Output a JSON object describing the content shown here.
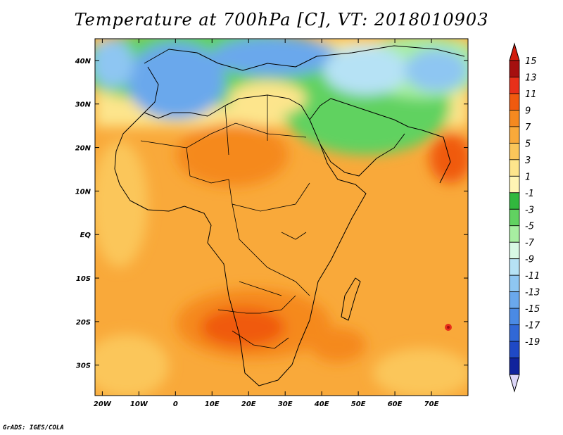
{
  "title": "Temperature at 700hPa [C], VT: 2018010903",
  "credit": "GrADS: IGES/COLA",
  "map": {
    "lon_range": [
      -22,
      80
    ],
    "lat_range": [
      -37,
      45
    ],
    "lon_ticks": [
      {
        "value": -20,
        "label": "20W"
      },
      {
        "value": -10,
        "label": "10W"
      },
      {
        "value": 0,
        "label": "0"
      },
      {
        "value": 10,
        "label": "10E"
      },
      {
        "value": 20,
        "label": "20E"
      },
      {
        "value": 30,
        "label": "30E"
      },
      {
        "value": 40,
        "label": "40E"
      },
      {
        "value": 50,
        "label": "50E"
      },
      {
        "value": 60,
        "label": "60E"
      },
      {
        "value": 70,
        "label": "70E"
      }
    ],
    "lat_ticks": [
      {
        "value": 40,
        "label": "40N"
      },
      {
        "value": 30,
        "label": "30N"
      },
      {
        "value": 20,
        "label": "20N"
      },
      {
        "value": 10,
        "label": "10N"
      },
      {
        "value": 0,
        "label": "EQ"
      },
      {
        "value": -10,
        "label": "10S"
      },
      {
        "value": -20,
        "label": "20S"
      },
      {
        "value": -30,
        "label": "30S"
      }
    ]
  },
  "colorbar": {
    "labels": [
      "15",
      "13",
      "11",
      "9",
      "7",
      "5",
      "3",
      "1",
      "-1",
      "-3",
      "-5",
      "-7",
      "-9",
      "-11",
      "-13",
      "-15",
      "-17",
      "-19"
    ],
    "colors": [
      "#a50f0f",
      "#e8301a",
      "#f05a0f",
      "#f5891f",
      "#f9a93a",
      "#fbc65a",
      "#fde58c",
      "#fff5b4",
      "#31b83e",
      "#61d261",
      "#a7eea1",
      "#d8f8e4",
      "#b6e2f5",
      "#8ec6f2",
      "#6aa8ec",
      "#4a8ae4",
      "#3168d6",
      "#1f49c6",
      "#10239c"
    ],
    "under_color": "#dcd6f8",
    "over_color": "#d11c0c"
  }
}
